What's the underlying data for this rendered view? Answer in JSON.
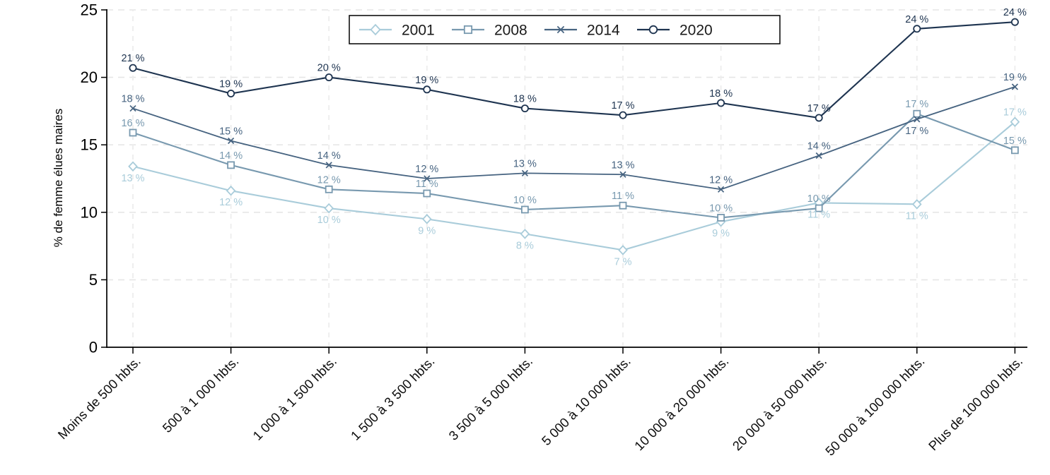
{
  "chart_data": {
    "type": "line",
    "title": "",
    "xlabel": "",
    "ylabel": "% de femme élues maires",
    "ylim": [
      0,
      25
    ],
    "yticks": [
      0,
      5,
      10,
      15,
      20,
      25
    ],
    "grid": true,
    "grid_style": "dashed",
    "legend_position": "top-center",
    "background": "#FFFFFF",
    "axis_color": "#000000",
    "categories": [
      "Moins de 500 hbts.",
      "500 à 1 000 hbts.",
      "1 000 à 1 500 hbts.",
      "1 500 à 3 500 hbts.",
      "3 500 à 5 000 hbts.",
      "5 000 à 10 000 hbts.",
      "10 000 à 20 000 hbts.",
      "20 000 à 50 000 hbts.",
      "50 000 à 100 000 hbts.",
      "Plus de 100 000 hbts."
    ],
    "series": [
      {
        "name": "2001",
        "color": "#A9CCDA",
        "marker": "diamond",
        "values": [
          13.4,
          11.6,
          10.3,
          9.5,
          8.4,
          7.2,
          9.3,
          10.7,
          10.6,
          16.7
        ],
        "labels": [
          "13 %",
          "12 %",
          "10 %",
          "9 %",
          "8 %",
          "7 %",
          "9 %",
          "11 %",
          "11 %",
          "17 %"
        ],
        "label_side": [
          "below",
          "below",
          "below",
          "below",
          "below",
          "below",
          "below",
          "below",
          "below",
          "above"
        ]
      },
      {
        "name": "2008",
        "color": "#7899AF",
        "marker": "square",
        "values": [
          15.9,
          13.5,
          11.7,
          11.4,
          10.2,
          10.5,
          9.6,
          10.3,
          17.3,
          14.6
        ],
        "labels": [
          "16 %",
          "14 %",
          "12 %",
          "11 %",
          "10 %",
          "11 %",
          "10 %",
          "10 %",
          "17 %",
          "15 %"
        ],
        "label_side": [
          "above",
          "above",
          "above",
          "above",
          "above",
          "above",
          "above",
          "above",
          "above",
          "above"
        ]
      },
      {
        "name": "2014",
        "color": "#466380",
        "marker": "x",
        "values": [
          17.7,
          15.3,
          13.5,
          12.5,
          12.9,
          12.8,
          11.7,
          14.2,
          16.9,
          19.3
        ],
        "labels": [
          "18 %",
          "15 %",
          "14 %",
          "12 %",
          "13 %",
          "13 %",
          "12 %",
          "14 %",
          "17 %",
          "19 %"
        ],
        "label_side": [
          "above",
          "above",
          "above",
          "above",
          "above",
          "above",
          "above",
          "above",
          "below",
          "above"
        ]
      },
      {
        "name": "2020",
        "color": "#1E3450",
        "marker": "circle",
        "values": [
          20.7,
          18.8,
          20.0,
          19.1,
          17.7,
          17.2,
          18.1,
          17.0,
          23.6,
          24.1
        ],
        "labels": [
          "21 %",
          "19 %",
          "20 %",
          "19 %",
          "18 %",
          "17 %",
          "18 %",
          "17 %",
          "24 %",
          "24 %"
        ],
        "label_side": [
          "above",
          "above",
          "above",
          "above",
          "above",
          "above",
          "above",
          "above",
          "above",
          "above"
        ]
      }
    ]
  }
}
